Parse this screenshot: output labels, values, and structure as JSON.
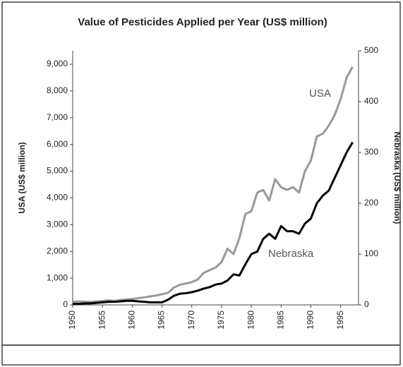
{
  "chart_data": {
    "type": "line",
    "title": "Value of Pesticides Applied per Year (US$ million)",
    "y_label": "USA (US$ million)",
    "y2_label": "Nebraska (US$ million)",
    "annotations": [
      "USA",
      "Nebraska"
    ],
    "x": [
      1950,
      1951,
      1952,
      1953,
      1954,
      1955,
      1956,
      1957,
      1958,
      1959,
      1960,
      1961,
      1962,
      1963,
      1964,
      1965,
      1966,
      1967,
      1968,
      1969,
      1970,
      1971,
      1972,
      1973,
      1974,
      1975,
      1976,
      1977,
      1978,
      1979,
      1980,
      1981,
      1982,
      1983,
      1984,
      1985,
      1986,
      1987,
      1988,
      1989,
      1990,
      1991,
      1992,
      1993,
      1994,
      1995,
      1996,
      1997
    ],
    "series": [
      {
        "name": "USA",
        "color": "#999999",
        "values": [
          120,
          130,
          120,
          110,
          130,
          150,
          170,
          150,
          180,
          200,
          220,
          250,
          280,
          320,
          350,
          400,
          450,
          650,
          750,
          800,
          850,
          950,
          1200,
          1300,
          1400,
          1600,
          2100,
          1900,
          2500,
          3400,
          3500,
          4200,
          4300,
          3900,
          4700,
          4400,
          4300,
          4400,
          4200,
          5000,
          5400,
          6300,
          6400,
          6700,
          7100,
          7700,
          8500,
          8900
        ]
      },
      {
        "name": "Nebraska",
        "color": "#000000",
        "axis": "y2",
        "values": [
          2,
          2,
          3,
          3,
          4,
          5,
          6,
          6,
          7,
          8,
          8,
          7,
          6,
          5,
          5,
          5,
          10,
          18,
          22,
          23,
          25,
          28,
          32,
          35,
          40,
          42,
          48,
          60,
          58,
          80,
          100,
          105,
          130,
          140,
          130,
          155,
          145,
          145,
          140,
          160,
          170,
          200,
          215,
          225,
          250,
          275,
          300,
          320
        ]
      }
    ],
    "xlim": [
      1950,
      1998
    ],
    "xticks": [
      1950,
      1955,
      1960,
      1965,
      1970,
      1975,
      1980,
      1985,
      1990,
      1995
    ],
    "ylim": [
      0,
      9500
    ],
    "yticks": [
      0,
      {
        "value": 1000,
        "label": "1,000"
      },
      {
        "value": 2000,
        "label": "2,000"
      },
      {
        "value": 3000,
        "label": "3,000"
      },
      {
        "value": 4000,
        "label": "4,000"
      },
      {
        "value": 5000,
        "label": "5,000"
      },
      {
        "value": 6000,
        "label": "6,000"
      },
      {
        "value": 7000,
        "label": "7,000"
      },
      {
        "value": 8000,
        "label": "8,000"
      },
      {
        "value": 9000,
        "label": "9,000"
      }
    ],
    "y2lim": [
      0,
      500
    ],
    "y2ticks": [
      0,
      100,
      200,
      300,
      400,
      500
    ],
    "grid": false
  }
}
